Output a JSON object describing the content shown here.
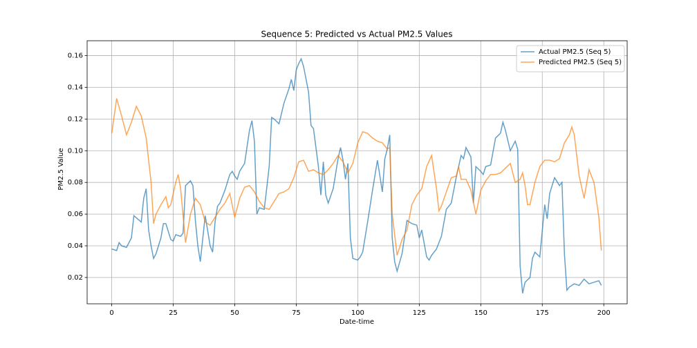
{
  "chart_data": {
    "type": "line",
    "title": "Sequence 5: Predicted vs Actual PM2.5 Values",
    "xlabel": "Date-time",
    "ylabel": "PM2.5 Value",
    "xlim": [
      -10,
      209.5
    ],
    "ylim": [
      0.0034,
      0.1694
    ],
    "xticks": [
      0,
      25,
      50,
      75,
      100,
      125,
      150,
      175,
      200
    ],
    "yticks": [
      0.02,
      0.04,
      0.06,
      0.08,
      {
        "value": 0.1,
        "label": "0.10"
      },
      0.12,
      0.14,
      0.16
    ],
    "grid": true,
    "legend": "upper right",
    "series": [
      {
        "name": "Actual PM2.5 (Seq 5)",
        "color": "#1f77b4",
        "x": [
          0,
          2,
          3,
          4,
          6,
          8,
          9,
          12,
          13,
          14,
          15,
          16,
          17,
          18,
          20,
          21,
          22,
          24,
          25,
          26,
          28,
          29,
          30,
          32,
          33,
          34,
          35,
          36,
          38,
          40,
          41,
          42,
          43,
          44,
          46,
          48,
          49,
          50,
          51,
          52,
          54,
          56,
          57,
          58,
          59,
          60,
          62,
          64,
          65,
          66,
          68,
          70,
          72,
          73,
          74,
          75,
          76,
          77,
          78,
          80,
          81,
          82,
          84,
          85,
          86,
          87,
          88,
          90,
          92,
          93,
          94,
          95,
          96,
          97,
          98,
          100,
          101,
          102,
          104,
          106,
          108,
          110,
          111,
          112,
          113,
          114,
          115,
          116,
          118,
          120,
          122,
          124,
          125,
          126,
          128,
          129,
          130,
          132,
          134,
          136,
          138,
          140,
          142,
          143,
          144,
          146,
          147,
          148,
          150,
          151,
          152,
          154,
          156,
          158,
          159,
          160,
          162,
          164,
          165,
          166,
          167,
          168,
          170,
          171,
          172,
          174,
          176,
          177,
          178,
          180,
          182,
          183,
          184,
          185,
          186,
          188,
          190,
          192,
          194,
          196,
          198,
          199
        ],
        "values": [
          0.038,
          0.037,
          0.042,
          0.04,
          0.039,
          0.045,
          0.059,
          0.055,
          0.07,
          0.076,
          0.05,
          0.04,
          0.032,
          0.035,
          0.045,
          0.054,
          0.054,
          0.044,
          0.043,
          0.047,
          0.046,
          0.048,
          0.078,
          0.081,
          0.078,
          0.056,
          0.04,
          0.03,
          0.059,
          0.04,
          0.036,
          0.055,
          0.065,
          0.067,
          0.075,
          0.085,
          0.087,
          0.084,
          0.082,
          0.087,
          0.092,
          0.113,
          0.119,
          0.106,
          0.06,
          0.064,
          0.063,
          0.09,
          0.121,
          0.12,
          0.117,
          0.13,
          0.139,
          0.145,
          0.138,
          0.151,
          0.155,
          0.158,
          0.153,
          0.137,
          0.116,
          0.114,
          0.09,
          0.072,
          0.093,
          0.072,
          0.067,
          0.076,
          0.095,
          0.102,
          0.094,
          0.082,
          0.092,
          0.045,
          0.032,
          0.031,
          0.033,
          0.036,
          0.055,
          0.075,
          0.094,
          0.074,
          0.095,
          0.101,
          0.11,
          0.045,
          0.03,
          0.024,
          0.035,
          0.056,
          0.054,
          0.053,
          0.045,
          0.05,
          0.033,
          0.031,
          0.034,
          0.038,
          0.046,
          0.063,
          0.067,
          0.083,
          0.097,
          0.095,
          0.102,
          0.096,
          0.067,
          0.09,
          0.087,
          0.085,
          0.09,
          0.091,
          0.108,
          0.111,
          0.118,
          0.113,
          0.1,
          0.106,
          0.101,
          0.027,
          0.01,
          0.017,
          0.02,
          0.032,
          0.036,
          0.033,
          0.066,
          0.057,
          0.073,
          0.083,
          0.078,
          0.08,
          0.035,
          0.012,
          0.014,
          0.016,
          0.015,
          0.019,
          0.016,
          0.017,
          0.018,
          0.015
        ]
      },
      {
        "name": "Predicted PM2.5 (Seq 5)",
        "color": "#ff7f0e",
        "x": [
          0,
          2,
          4,
          6,
          8,
          10,
          12,
          14,
          16,
          17,
          18,
          20,
          22,
          23,
          24,
          26,
          27,
          28,
          30,
          32,
          34,
          36,
          38,
          40,
          42,
          44,
          46,
          48,
          50,
          52,
          54,
          56,
          58,
          60,
          62,
          64,
          66,
          68,
          70,
          72,
          74,
          76,
          78,
          80,
          82,
          84,
          86,
          88,
          90,
          92,
          94,
          96,
          98,
          100,
          102,
          104,
          106,
          108,
          110,
          112,
          113,
          114,
          116,
          118,
          120,
          122,
          124,
          126,
          128,
          130,
          132,
          133,
          134,
          136,
          138,
          140,
          141,
          142,
          144,
          146,
          148,
          150,
          152,
          154,
          156,
          158,
          160,
          162,
          164,
          166,
          167,
          168,
          169,
          170,
          172,
          174,
          176,
          178,
          180,
          182,
          184,
          186,
          187,
          188,
          190,
          192,
          194,
          196,
          198,
          199
        ],
        "values": [
          0.111,
          0.133,
          0.122,
          0.11,
          0.118,
          0.128,
          0.122,
          0.108,
          0.08,
          0.054,
          0.06,
          0.066,
          0.071,
          0.064,
          0.066,
          0.08,
          0.085,
          0.076,
          0.042,
          0.06,
          0.07,
          0.066,
          0.055,
          0.053,
          0.058,
          0.063,
          0.067,
          0.073,
          0.058,
          0.07,
          0.077,
          0.078,
          0.074,
          0.068,
          0.064,
          0.063,
          0.068,
          0.073,
          0.074,
          0.076,
          0.083,
          0.093,
          0.094,
          0.087,
          0.088,
          0.086,
          0.085,
          0.088,
          0.092,
          0.097,
          0.093,
          0.086,
          0.092,
          0.105,
          0.112,
          0.111,
          0.108,
          0.106,
          0.105,
          0.101,
          0.102,
          0.06,
          0.034,
          0.044,
          0.05,
          0.066,
          0.072,
          0.076,
          0.09,
          0.097,
          0.076,
          0.062,
          0.065,
          0.074,
          0.083,
          0.084,
          0.09,
          0.082,
          0.082,
          0.075,
          0.06,
          0.075,
          0.081,
          0.085,
          0.085,
          0.086,
          0.089,
          0.092,
          0.08,
          0.082,
          0.086,
          0.078,
          0.066,
          0.066,
          0.08,
          0.09,
          0.094,
          0.094,
          0.093,
          0.095,
          0.105,
          0.11,
          0.115,
          0.11,
          0.084,
          0.07,
          0.088,
          0.08,
          0.058,
          0.037
        ]
      }
    ]
  }
}
